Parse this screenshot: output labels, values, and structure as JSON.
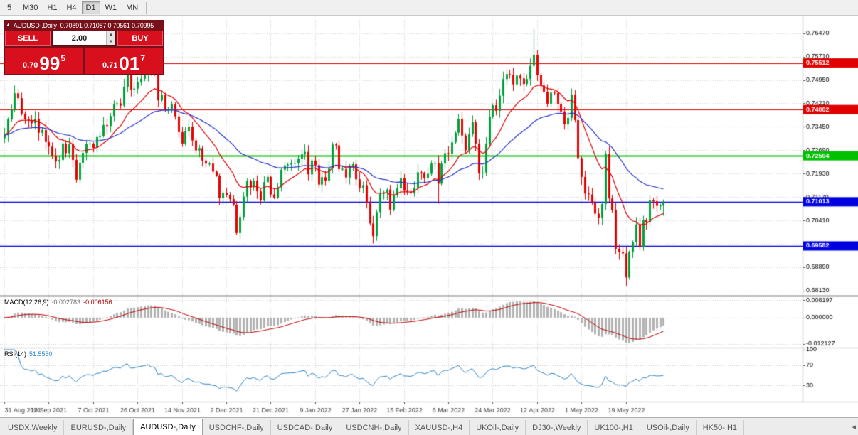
{
  "toolbar": {
    "timeframes": [
      "5",
      "M30",
      "H1",
      "H4",
      "D1",
      "W1",
      "MN"
    ],
    "active": "D1"
  },
  "chart": {
    "collapse_icon": "▲",
    "symbol_line": "AUDUSD-,Daily",
    "ohlc": "0.70891 0.71087 0.70561 0.70995"
  },
  "trade_panel": {
    "sell_label": "SELL",
    "buy_label": "BUY",
    "volume": "2.00",
    "up_icon": "▲",
    "down_icon": "▼",
    "bid": {
      "prefix": "0.70",
      "big": "99",
      "sup": "5"
    },
    "ask": {
      "prefix": "0.71",
      "big": "01",
      "sup": "7"
    }
  },
  "indicators": {
    "macd": {
      "label": "MACD(12,26,9)",
      "value": "-0.002783",
      "signal_value": "-0.006156"
    },
    "rsi": {
      "label": "RSI(14)",
      "value": "51.5550"
    }
  },
  "tabs": {
    "items": [
      "USDX,Weekly",
      "EURUSD-,Daily",
      "AUDUSD-,Daily",
      "USDCHF-,Daily",
      "USDCAD-,Daily",
      "USDCNH-,Daily",
      "XAUUSD-,H4",
      "UKOil-,Daily",
      "DJ30-,Weekly",
      "UK100-,H1",
      "USOil-,Daily",
      "HK50-,H1"
    ],
    "active_index": 2,
    "scroll_icon": "◂"
  },
  "chart_data": {
    "type": "candlestick",
    "title": "AUDUSD-,Daily",
    "ohlc_display": {
      "open": 0.70891,
      "high": 0.71087,
      "low": 0.70561,
      "close": 0.70995
    },
    "first_open": 0.7307,
    "closes": [
      0.7317,
      0.7369,
      0.74,
      0.7453,
      0.7437,
      0.7387,
      0.7368,
      0.7366,
      0.7356,
      0.737,
      0.7325,
      0.7334,
      0.7295,
      0.728,
      0.7251,
      0.7232,
      0.7237,
      0.729,
      0.7259,
      0.7288,
      0.7237,
      0.7173,
      0.7227,
      0.726,
      0.7288,
      0.729,
      0.7276,
      0.7311,
      0.7315,
      0.735,
      0.7347,
      0.7379,
      0.7417,
      0.742,
      0.7413,
      0.7474,
      0.7515,
      0.7465,
      0.7468,
      0.7488,
      0.75,
      0.7515,
      0.754,
      0.7518,
      0.7515,
      0.743,
      0.7447,
      0.7398,
      0.7402,
      0.7417,
      0.7378,
      0.7327,
      0.729,
      0.733,
      0.7345,
      0.73,
      0.7268,
      0.7275,
      0.7235,
      0.7225,
      0.7225,
      0.7199,
      0.7186,
      0.7113,
      0.713,
      0.7124,
      0.711,
      0.7092,
      0.7,
      0.7052,
      0.7118,
      0.7169,
      0.7148,
      0.717,
      0.7135,
      0.7106,
      0.7165,
      0.7182,
      0.7125,
      0.7115,
      0.7148,
      0.7205,
      0.7219,
      0.7222,
      0.7226,
      0.7227,
      0.7241,
      0.7255,
      0.7263,
      0.719,
      0.7235,
      0.722,
      0.7157,
      0.7181,
      0.717,
      0.7209,
      0.7287,
      0.7284,
      0.7207,
      0.7208,
      0.718,
      0.7218,
      0.7223,
      0.7174,
      0.7147,
      0.7155,
      0.7098,
      0.7031,
      0.699,
      0.7068,
      0.7127,
      0.7132,
      0.7141,
      0.7076,
      0.7123,
      0.7145,
      0.7178,
      0.7137,
      0.7134,
      0.7129,
      0.7147,
      0.7197,
      0.7195,
      0.7178,
      0.7192,
      0.7225,
      0.7227,
      0.716,
      0.7225,
      0.7259,
      0.7257,
      0.7294,
      0.7325,
      0.737,
      0.7316,
      0.7268,
      0.732,
      0.7359,
      0.729,
      0.7194,
      0.7196,
      0.729,
      0.7377,
      0.7414,
      0.7396,
      0.7445,
      0.7499,
      0.7515,
      0.7512,
      0.7482,
      0.751,
      0.7501,
      0.7483,
      0.7499,
      0.7542,
      0.7577,
      0.7511,
      0.7478,
      0.7458,
      0.7419,
      0.7455,
      0.7454,
      0.7418,
      0.7394,
      0.7352,
      0.7373,
      0.7448,
      0.7366,
      0.7243,
      0.7182,
      0.7128,
      0.7125,
      0.7099,
      0.7063,
      0.705,
      0.7094,
      0.7256,
      0.7112,
      0.7075,
      0.6949,
      0.6939,
      0.6934,
      0.6856,
      0.6939,
      0.697,
      0.7028,
      0.6955,
      0.7042,
      0.7035,
      0.7106,
      0.7103,
      0.7088,
      0.70891,
      0.70995
    ],
    "wick_overrides": {
      "3": {
        "high": 0.7478
      },
      "42": {
        "high": 0.7555
      },
      "68": {
        "low": 0.6993
      },
      "108": {
        "low": 0.6966
      },
      "127": {
        "low": 0.7095
      },
      "155": {
        "high": 0.7661
      },
      "176": {
        "high": 0.7266
      },
      "182": {
        "low": 0.6829
      },
      "193": {
        "high": 0.71087,
        "low": 0.70561
      }
    },
    "price_ticks": [
      "0.76470",
      "0.75710",
      "0.74950",
      "0.74210",
      "0.73450",
      "0.72690",
      "0.71930",
      "0.71170",
      "0.70410",
      "0.69650",
      "0.68890",
      "0.68130"
    ],
    "date_ticks": [
      "31 Aug 2021",
      "19 Sep 2021",
      "7 Oct 2021",
      "26 Oct 2021",
      "14 Nov 2021",
      "2 Dec 2021",
      "21 Dec 2021",
      "9 Jan 2022",
      "27 Jan 2022",
      "15 Feb 2022",
      "6 Mar 2022",
      "24 Mar 2022",
      "12 Apr 2022",
      "1 May 2022",
      "19 May 2022"
    ],
    "bars_per_date_tick": 13,
    "levels": [
      {
        "price": 0.75512,
        "label": "0.75512",
        "color": "#e00000",
        "width": 1
      },
      {
        "price": 0.74002,
        "label": "0.74002",
        "color": "#e00000",
        "width": 1
      },
      {
        "price": 0.72504,
        "label": "0.72504",
        "color": "#00c000",
        "width": 2
      },
      {
        "price": 0.71013,
        "label": "0.71013",
        "color": "#0000e0",
        "width": 1.5
      },
      {
        "price": 0.69582,
        "label": "0.69582",
        "color": "#0000e0",
        "width": 1.5
      }
    ],
    "moving_averages": [
      {
        "period": 14,
        "type": "ema",
        "color": "#dd0000"
      },
      {
        "period": 40,
        "type": "ema",
        "color": "#2633cc"
      }
    ],
    "up_color": "#00a03c",
    "down_color": "#e60000",
    "macd": {
      "fast": 12,
      "slow": 26,
      "signal": 9,
      "value": -0.002783,
      "signal_value": -0.006156,
      "axis": [
        "0.008197",
        "0.000000",
        "-0.012127"
      ],
      "hist_color": "#b2b2b2",
      "signal_color": "#c00000"
    },
    "rsi": {
      "period": 14,
      "value": 51.555,
      "axis": [
        "100",
        "70",
        "30"
      ],
      "levels": [
        70,
        30
      ],
      "color": "#2e86c8"
    }
  }
}
